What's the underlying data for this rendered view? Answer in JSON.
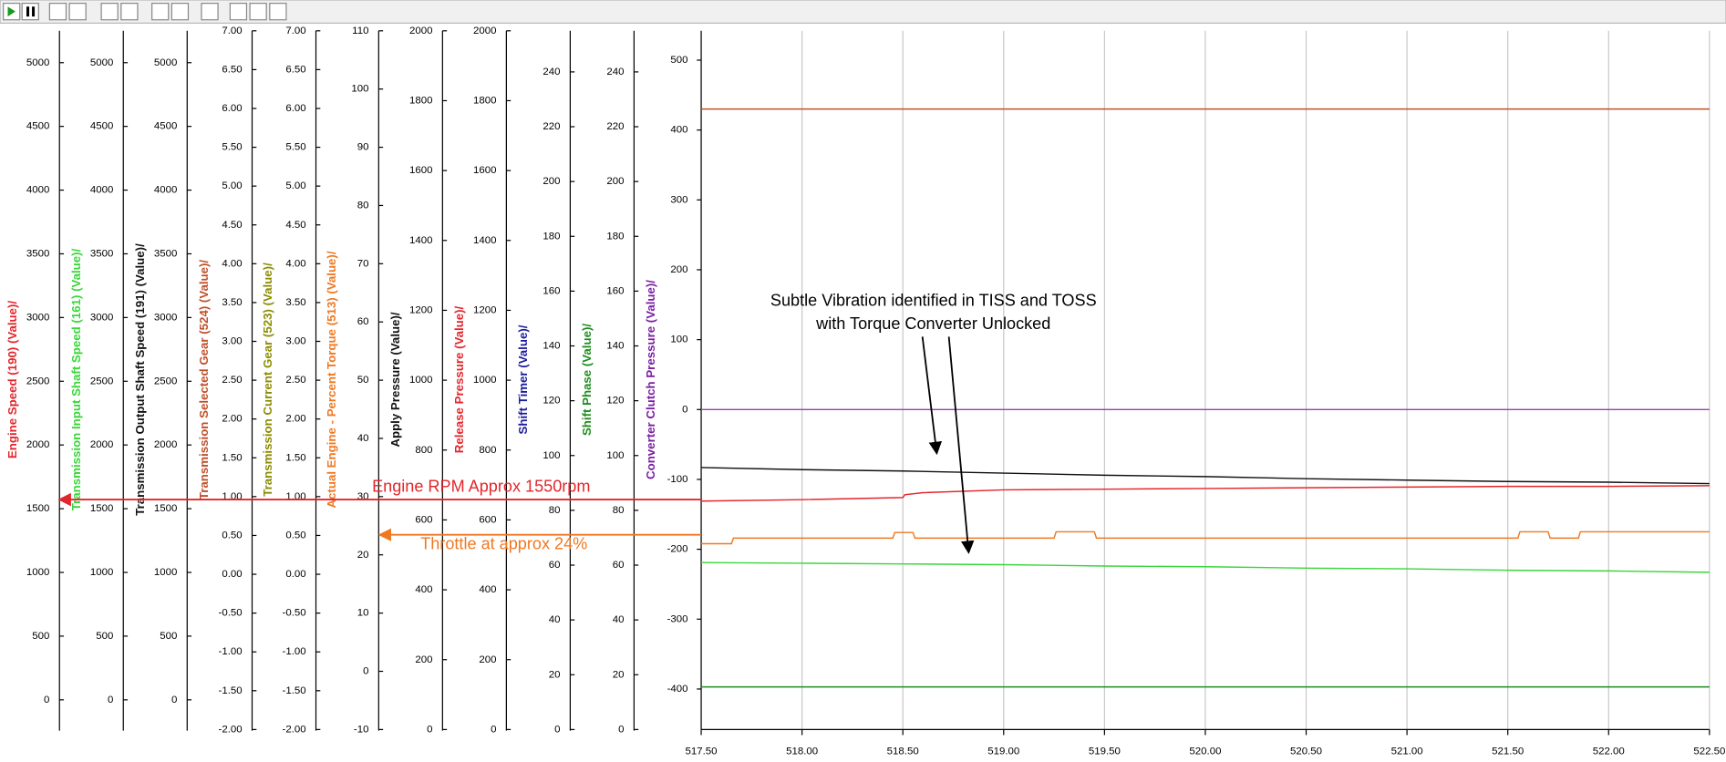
{
  "chart_data": {
    "type": "line",
    "ylabel": "Converter Clutch Pressure (Value)/",
    "ylabel_color": "#7a1fa2",
    "ylim": [
      -458,
      542
    ],
    "yticks": [
      -400,
      -300,
      -200,
      -100,
      0,
      100,
      200,
      300,
      400,
      500
    ],
    "xlim": [
      517.5,
      522.5
    ],
    "xticks": [
      {
        "value": 517.5,
        "label": "517.50"
      },
      {
        "value": 518.0,
        "label": "518.00"
      },
      {
        "value": 518.5,
        "label": "518.50"
      },
      {
        "value": 519.0,
        "label": "519.00"
      },
      {
        "value": 519.5,
        "label": "519.50"
      },
      {
        "value": 520.0,
        "label": "520.00"
      },
      {
        "value": 520.5,
        "label": "520.50"
      },
      {
        "value": 521.0,
        "label": "521.00"
      },
      {
        "value": 521.5,
        "label": "521.50"
      },
      {
        "value": 522.0,
        "label": "522.00"
      },
      {
        "value": 522.5,
        "label": "522.50"
      }
    ],
    "grid": true,
    "extra_axes": [
      {
        "label": "Engine Speed (190) (Value)/",
        "color": "#e3262b",
        "ylim": [
          -233,
          5250
        ],
        "yticks": [
          0,
          500,
          1000,
          1500,
          2000,
          2500,
          3000,
          3500,
          4000,
          4500,
          5000
        ]
      },
      {
        "label": "Transmission Input Shaft Speed (161) (Value)/",
        "color": "#3ad63a",
        "ylim": [
          -233,
          5250
        ],
        "yticks": [
          0,
          500,
          1000,
          1500,
          2000,
          2500,
          3000,
          3500,
          4000,
          4500,
          5000
        ]
      },
      {
        "label": "Transmission Output Shaft Speed (191) (Value)/",
        "color": "#111111",
        "ylim": [
          -233,
          5250
        ],
        "yticks": [
          0,
          500,
          1000,
          1500,
          2000,
          2500,
          3000,
          3500,
          4000,
          4500,
          5000
        ]
      },
      {
        "label": "Transmission Selected Gear (524) (Value)/",
        "color": "#c0502a",
        "ylim": [
          -2,
          7
        ],
        "yticks": [
          {
            "value": -2,
            "label": "-2.00"
          },
          {
            "value": -1.5,
            "label": "-1.50"
          },
          {
            "value": -1,
            "label": "-1.00"
          },
          {
            "value": -0.5,
            "label": "-0.50"
          },
          {
            "value": 0,
            "label": "0.00"
          },
          {
            "value": 0.5,
            "label": "0.50"
          },
          {
            "value": 1,
            "label": "1.00"
          },
          {
            "value": 1.5,
            "label": "1.50"
          },
          {
            "value": 2,
            "label": "2.00"
          },
          {
            "value": 2.5,
            "label": "2.50"
          },
          {
            "value": 3,
            "label": "3.00"
          },
          {
            "value": 3.5,
            "label": "3.50"
          },
          {
            "value": 4,
            "label": "4.00"
          },
          {
            "value": 4.5,
            "label": "4.50"
          },
          {
            "value": 5,
            "label": "5.00"
          },
          {
            "value": 5.5,
            "label": "5.50"
          },
          {
            "value": 6,
            "label": "6.00"
          },
          {
            "value": 6.5,
            "label": "6.50"
          },
          {
            "value": 7,
            "label": "7.00"
          }
        ]
      },
      {
        "label": "Transmission Current Gear (523) (Value)/",
        "color": "#8c8c00",
        "ylim": [
          -2,
          7
        ],
        "yticks": [
          {
            "value": -2,
            "label": "-2.00"
          },
          {
            "value": -1.5,
            "label": "-1.50"
          },
          {
            "value": -1,
            "label": "-1.00"
          },
          {
            "value": -0.5,
            "label": "-0.50"
          },
          {
            "value": 0,
            "label": "0.00"
          },
          {
            "value": 0.5,
            "label": "0.50"
          },
          {
            "value": 1,
            "label": "1.00"
          },
          {
            "value": 1.5,
            "label": "1.50"
          },
          {
            "value": 2,
            "label": "2.00"
          },
          {
            "value": 2.5,
            "label": "2.50"
          },
          {
            "value": 3,
            "label": "3.00"
          },
          {
            "value": 3.5,
            "label": "3.50"
          },
          {
            "value": 4,
            "label": "4.00"
          },
          {
            "value": 4.5,
            "label": "4.50"
          },
          {
            "value": 5,
            "label": "5.00"
          },
          {
            "value": 5.5,
            "label": "5.50"
          },
          {
            "value": 6,
            "label": "6.00"
          },
          {
            "value": 6.5,
            "label": "6.50"
          },
          {
            "value": 7,
            "label": "7.00"
          }
        ]
      },
      {
        "label": "Actual Engine - Percent Torque (513) (Value)/",
        "color": "#f07820",
        "ylim": [
          -10,
          110
        ],
        "yticks": [
          -10,
          0,
          10,
          20,
          30,
          40,
          50,
          60,
          70,
          80,
          90,
          100,
          110
        ]
      },
      {
        "label": "Apply Pressure (Value)/",
        "color": "#111111",
        "ylim": [
          0,
          2000
        ],
        "yticks": [
          0,
          200,
          400,
          600,
          800,
          1000,
          1200,
          1400,
          1600,
          1800,
          2000
        ]
      },
      {
        "label": "Release Pressure (Value)/",
        "color": "#e3262b",
        "ylim": [
          0,
          2000
        ],
        "yticks": [
          0,
          200,
          400,
          600,
          800,
          1000,
          1200,
          1400,
          1600,
          1800,
          2000
        ]
      },
      {
        "label": "Shift Timer (Value)/",
        "color": "#1c1c9c",
        "ylim": [
          0,
          255
        ],
        "yticks": [
          0,
          20,
          40,
          60,
          80,
          100,
          120,
          140,
          160,
          180,
          200,
          220,
          240
        ]
      },
      {
        "label": "Shift Phase (Value)/",
        "color": "#1e8c1e",
        "ylim": [
          0,
          255
        ],
        "yticks": [
          0,
          20,
          40,
          60,
          80,
          100,
          120,
          140,
          160,
          180,
          200,
          220,
          240
        ]
      }
    ],
    "series": [
      {
        "color": "#c0502a",
        "x": [
          517.5,
          522.5
        ],
        "values": [
          430,
          430
        ]
      },
      {
        "color": "#9b3fb5",
        "x": [
          517.5,
          522.5
        ],
        "values": [
          0,
          0
        ]
      },
      {
        "color": "#1e8c1e",
        "x": [
          517.5,
          522.5
        ],
        "values": [
          -397,
          -397
        ]
      },
      {
        "color": "#111111",
        "x": [
          517.5,
          518,
          518.5,
          519,
          519.5,
          520,
          520.5,
          521,
          521.5,
          522,
          522.5
        ],
        "values": [
          -83,
          -86,
          -88,
          -91,
          -94,
          -96,
          -99,
          -101,
          -103,
          -104,
          -106
        ]
      },
      {
        "color": "#e3262b",
        "x": [
          517.5,
          518,
          518.5,
          518.51,
          518.6,
          519,
          519.5,
          520,
          520.5,
          521,
          521.5,
          522,
          522.5
        ],
        "values": [
          -131,
          -129,
          -126,
          -122,
          -119,
          -115,
          -114,
          -113,
          -112,
          -111,
          -110,
          -110,
          -109
        ]
      },
      {
        "color": "#f07820",
        "x": [
          517.5,
          517.65,
          517.66,
          518.45,
          518.46,
          518.55,
          518.56,
          519.25,
          519.26,
          519.45,
          519.46,
          521.55,
          521.56,
          521.7,
          521.71,
          521.85,
          521.86,
          522.5
        ],
        "values": [
          -192,
          -192,
          -184,
          -184,
          -176,
          -176,
          -184,
          -184,
          -175,
          -175,
          -184,
          -184,
          -175,
          -175,
          -184,
          -184,
          -175,
          -175
        ]
      },
      {
        "color": "#3ad63a",
        "x": [
          517.5,
          518,
          518.5,
          519,
          519.5,
          520,
          520.5,
          521,
          521.5,
          522,
          522.5
        ],
        "values": [
          -219,
          -220,
          -221,
          -222,
          -224,
          -225,
          -227,
          -228,
          -230,
          -231,
          -233
        ]
      }
    ],
    "annotations": [
      {
        "text": "Subtle Vibration identified in TISS and TOSS",
        "color": "#000000"
      },
      {
        "text": "with Torque Converter Unlocked",
        "color": "#000000"
      },
      {
        "text": "Engine RPM Approx 1550rpm",
        "color": "#e3262b"
      },
      {
        "text": "Throttle at approx 24%",
        "color": "#f07820"
      }
    ]
  }
}
